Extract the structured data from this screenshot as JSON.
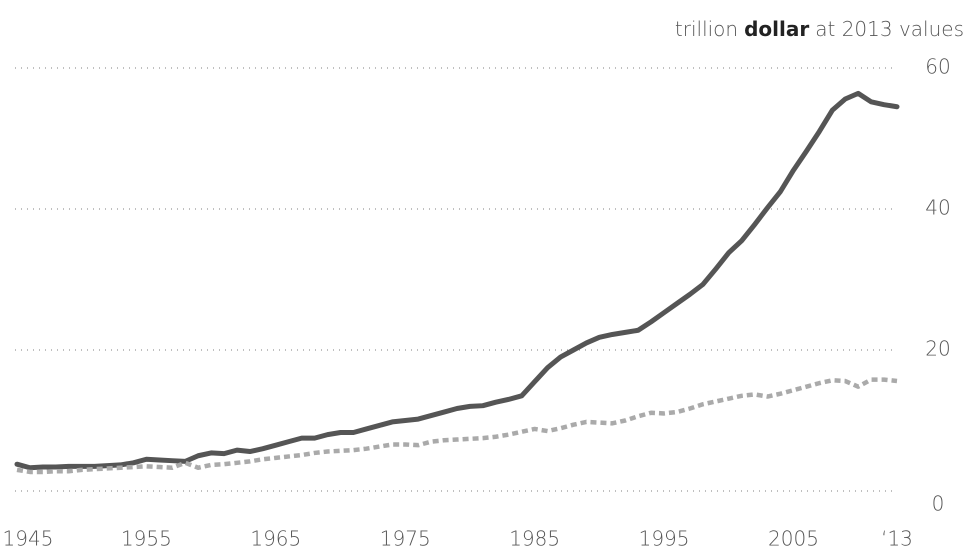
{
  "chart_data": {
    "type": "line",
    "axis_label": {
      "prefix": "trillion",
      "emphasis": "dollar",
      "suffix": "at 2013 values"
    },
    "x": [
      1945,
      1946,
      1947,
      1948,
      1949,
      1950,
      1951,
      1952,
      1953,
      1954,
      1955,
      1956,
      1957,
      1958,
      1959,
      1960,
      1961,
      1962,
      1963,
      1964,
      1965,
      1966,
      1967,
      1968,
      1969,
      1970,
      1971,
      1972,
      1973,
      1974,
      1975,
      1976,
      1977,
      1978,
      1979,
      1980,
      1981,
      1982,
      1983,
      1984,
      1985,
      1986,
      1987,
      1988,
      1989,
      1990,
      1991,
      1992,
      1993,
      1994,
      1995,
      1996,
      1997,
      1998,
      1999,
      2000,
      2001,
      2002,
      2003,
      2004,
      2005,
      2006,
      2007,
      2008,
      2009,
      2010,
      2011,
      2012,
      2013
    ],
    "series": [
      {
        "color": "#555555",
        "dash": "solid",
        "values": [
          3.8,
          3.3,
          3.4,
          3.4,
          3.5,
          3.5,
          3.5,
          3.6,
          3.7,
          4.0,
          4.5,
          4.4,
          4.3,
          4.2,
          5.0,
          5.4,
          5.3,
          5.8,
          5.6,
          6.0,
          6.5,
          7.0,
          7.5,
          7.5,
          8.0,
          8.3,
          8.3,
          8.8,
          9.3,
          9.8,
          10.0,
          10.2,
          10.7,
          11.2,
          11.7,
          12.0,
          12.1,
          12.6,
          13.0,
          13.5,
          15.5,
          17.5,
          19.0,
          20.0,
          21.0,
          21.8,
          22.2,
          22.5,
          22.8,
          24.0,
          25.3,
          26.6,
          27.9,
          29.3,
          31.5,
          33.8,
          35.5,
          37.8,
          40.2,
          42.5,
          45.5,
          48.2,
          51.0,
          54.0,
          55.6,
          56.4,
          55.2,
          54.8,
          54.5
        ]
      },
      {
        "color": "#aaaaaa",
        "dash": "dotted",
        "values": [
          3.0,
          2.7,
          2.7,
          2.8,
          2.8,
          3.0,
          3.1,
          3.2,
          3.3,
          3.4,
          3.5,
          3.4,
          3.3,
          4.0,
          3.3,
          3.7,
          3.8,
          4.0,
          4.2,
          4.5,
          4.7,
          4.9,
          5.1,
          5.4,
          5.6,
          5.7,
          5.8,
          6.0,
          6.3,
          6.6,
          6.6,
          6.5,
          7.0,
          7.2,
          7.3,
          7.4,
          7.5,
          7.7,
          8.0,
          8.4,
          8.8,
          8.5,
          8.9,
          9.4,
          9.8,
          9.7,
          9.6,
          10.0,
          10.6,
          11.1,
          11.0,
          11.2,
          11.7,
          12.3,
          12.7,
          13.1,
          13.5,
          13.7,
          13.4,
          13.8,
          14.3,
          14.8,
          15.3,
          15.7,
          15.6,
          14.8,
          15.8,
          15.8,
          15.6
        ]
      }
    ],
    "xlim": [
      1945,
      2013
    ],
    "xticks": [
      1945,
      1955,
      1965,
      1975,
      1985,
      1995,
      2005,
      {
        "value": 2013,
        "label": "‘13"
      }
    ],
    "ylim": [
      0,
      60
    ],
    "yticks": [
      0,
      20,
      40,
      60
    ],
    "y_axis_side": "right",
    "grid": true
  }
}
